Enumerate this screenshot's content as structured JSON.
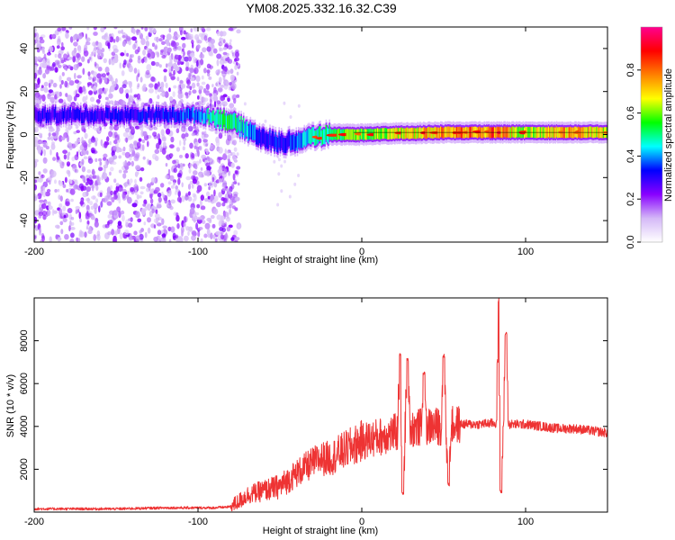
{
  "title": "YM08.2025.332.16.32.C39",
  "chart_data": [
    {
      "type": "heatmap",
      "name": "spectrogram",
      "xlabel": "Height of straight line (km)",
      "ylabel": "Frequency (Hz)",
      "xlim": [
        -200,
        150
      ],
      "ylim": [
        -50,
        50
      ],
      "xticks": [
        -200,
        -100,
        0,
        100
      ],
      "xtick_labels": [
        "-200",
        "-100",
        "0",
        "100"
      ],
      "yticks": [
        -40,
        -20,
        0,
        20,
        40
      ],
      "ytick_labels": [
        "-40",
        "-20",
        "0",
        "20",
        "40"
      ],
      "colorbar": {
        "label": "Normalized spectral amplitude",
        "range": [
          0,
          1
        ],
        "ticks": [
          0.0,
          0.2,
          0.4,
          0.6,
          0.8
        ],
        "tick_labels": [
          "0.0",
          "0.2",
          "0.4",
          "0.6",
          "0.8"
        ],
        "colors": [
          "#ffffff",
          "#d4b8f7",
          "#8800ff",
          "#0000ff",
          "#00ffff",
          "#00ff00",
          "#ffff00",
          "#ff8000",
          "#ff0000",
          "#ff0090"
        ]
      },
      "ridge": {
        "x": [
          -200,
          -150,
          -120,
          -100,
          -90,
          -80,
          -70,
          -60,
          -50,
          -40,
          -30,
          -20,
          0,
          20,
          50,
          80,
          100,
          130,
          150
        ],
        "freq": [
          9,
          9,
          9,
          9,
          8,
          6,
          2,
          -2,
          -4,
          -3,
          -1,
          0,
          0,
          0.5,
          1,
          1,
          1,
          1,
          1
        ],
        "amplitude": [
          0.3,
          0.3,
          0.32,
          0.38,
          0.5,
          0.5,
          0.42,
          0.32,
          0.32,
          0.38,
          0.45,
          0.52,
          0.58,
          0.65,
          0.75,
          0.78,
          0.62,
          0.75,
          0.62
        ]
      },
      "noise_region_xlim": [
        -200,
        -85
      ]
    },
    {
      "type": "line",
      "name": "snr",
      "xlabel": "Height of straight line (km)",
      "ylabel": "SNR (10 * v/v)",
      "xlim": [
        -200,
        150
      ],
      "ylim": [
        0,
        10000
      ],
      "xticks": [
        -200,
        -100,
        0,
        100
      ],
      "xtick_labels": [
        "-200",
        "-100",
        "0",
        "100"
      ],
      "yticks": [
        2000,
        4000,
        6000,
        8000
      ],
      "ytick_labels": [
        "2000",
        "4000",
        "6000",
        "8000"
      ],
      "color": "#ee3333",
      "x": [
        -200,
        -150,
        -120,
        -100,
        -90,
        -80,
        -75,
        -70,
        -60,
        -50,
        -40,
        -30,
        -25,
        -20,
        -10,
        0,
        10,
        20,
        30,
        40,
        50,
        60,
        70,
        80,
        85,
        90,
        100,
        110,
        120,
        130,
        140,
        150
      ],
      "y": [
        150,
        150,
        200,
        200,
        200,
        250,
        500,
        800,
        1000,
        1200,
        1800,
        2300,
        2500,
        2500,
        2900,
        3300,
        3500,
        3700,
        3900,
        4000,
        4000,
        4100,
        4100,
        4150,
        4100,
        4100,
        4100,
        4000,
        3900,
        3900,
        3800,
        3700
      ],
      "spikes": [
        {
          "x": 23.5,
          "y": 7400
        },
        {
          "x": 25,
          "y": 900
        },
        {
          "x": 28,
          "y": 7100
        },
        {
          "x": 38,
          "y": 6500
        },
        {
          "x": 50,
          "y": 7300
        },
        {
          "x": 53,
          "y": 1300
        },
        {
          "x": 83.8,
          "y": 9900
        },
        {
          "x": 85,
          "y": 1000
        },
        {
          "x": 88,
          "y": 8300
        }
      ]
    }
  ]
}
